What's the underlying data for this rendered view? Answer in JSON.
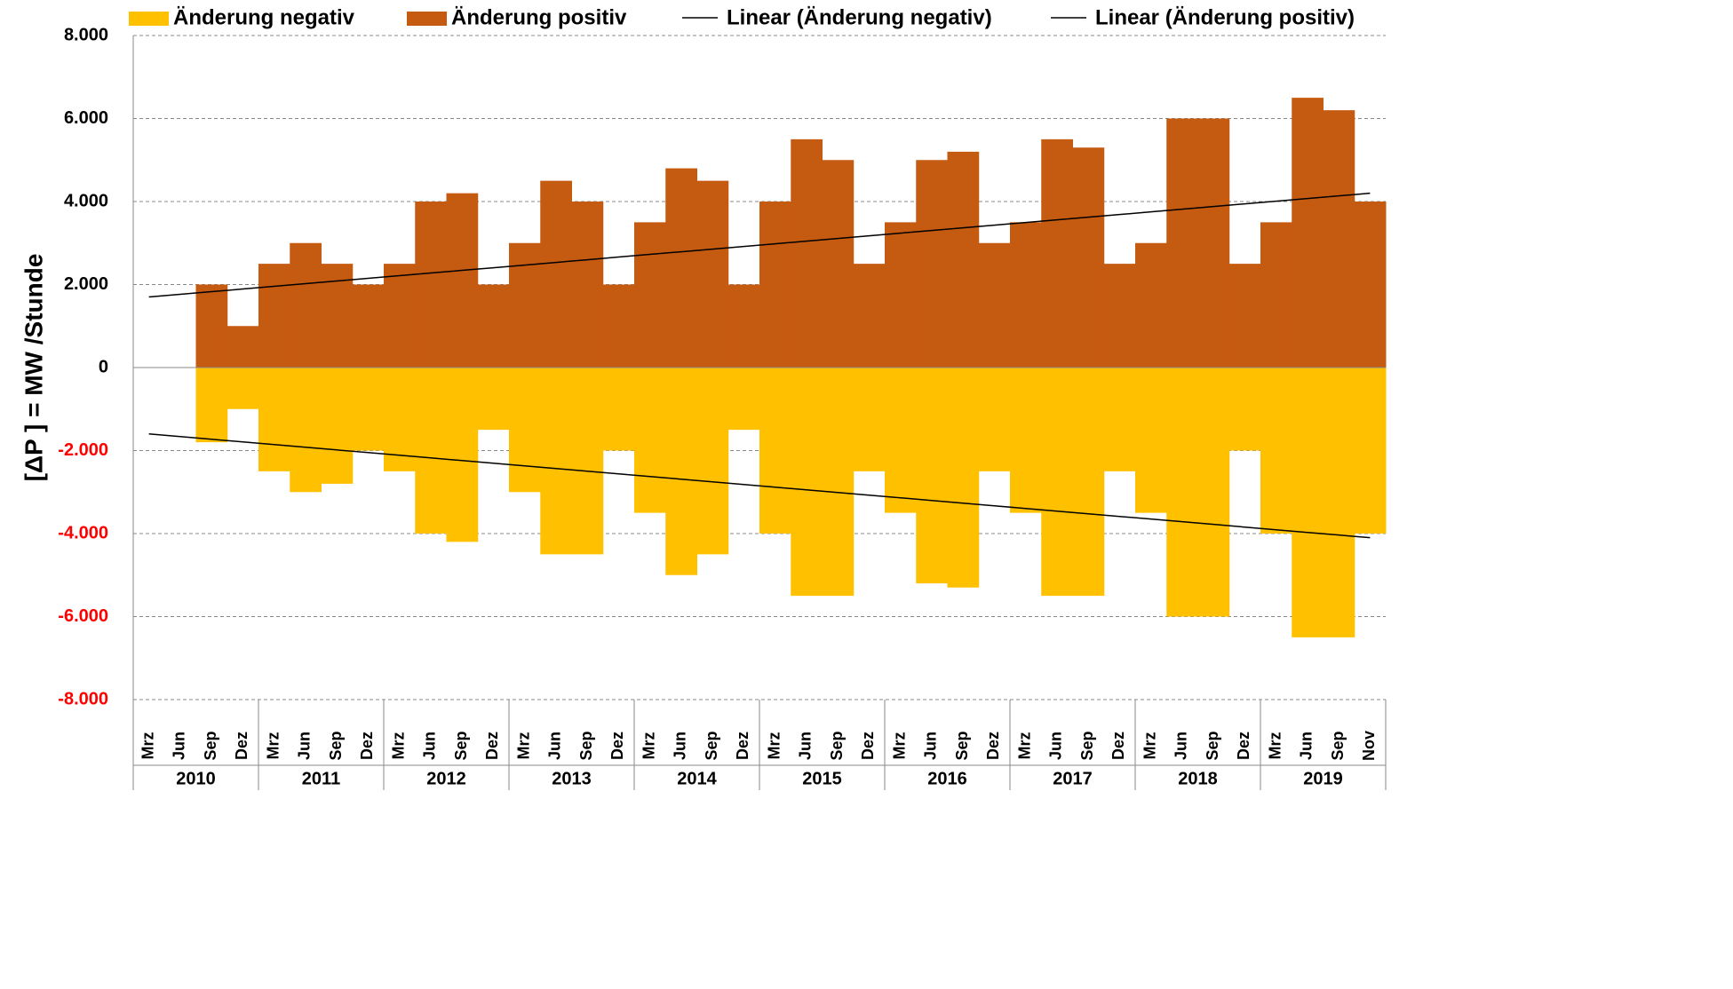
{
  "chart_data": {
    "type": "bar",
    "y_label": "[ΔP ]  =  MW /Stunde",
    "categories": [
      "Mrz",
      "Jun",
      "Sep",
      "Dez",
      "Mrz",
      "Jun",
      "Sep",
      "Dez",
      "Mrz",
      "Jun",
      "Sep",
      "Dez",
      "Mrz",
      "Jun",
      "Sep",
      "Dez",
      "Mrz",
      "Jun",
      "Sep",
      "Dez",
      "Mrz",
      "Jun",
      "Sep",
      "Dez",
      "Mrz",
      "Jun",
      "Sep",
      "Dez",
      "Mrz",
      "Jun",
      "Sep",
      "Dez",
      "Mrz",
      "Jun",
      "Sep",
      "Dez",
      "Mrz",
      "Jun",
      "Sep",
      "Nov"
    ],
    "years": [
      "2010",
      "2011",
      "2012",
      "2013",
      "2014",
      "2015",
      "2016",
      "2017",
      "2018",
      "2019"
    ],
    "series": [
      {
        "name": "Änderung negativ",
        "color": "#ffc000",
        "values": [
          null,
          null,
          -1800,
          -1000,
          -2500,
          -3000,
          -2800,
          -2000,
          -2500,
          -4000,
          -4200,
          -1500,
          -3000,
          -4500,
          -4500,
          -2000,
          -3500,
          -5000,
          -4500,
          -1500,
          -4000,
          -5500,
          -5500,
          -2500,
          -3500,
          -5200,
          -5300,
          -2500,
          -3500,
          -5500,
          -5500,
          -2500,
          -3500,
          -6000,
          -6000,
          -2000,
          -4000,
          -6500,
          -6500,
          -4000
        ]
      },
      {
        "name": "Änderung positiv",
        "color": "#c55a11",
        "values": [
          null,
          null,
          2000,
          1000,
          2500,
          3000,
          2500,
          2000,
          2500,
          4000,
          4200,
          2000,
          3000,
          4500,
          4000,
          2000,
          3500,
          4800,
          4500,
          2000,
          4000,
          5500,
          5000,
          2500,
          3500,
          5000,
          5200,
          3000,
          3500,
          5500,
          5300,
          2500,
          3000,
          6000,
          6000,
          2500,
          3500,
          6500,
          6200,
          4000
        ]
      },
      {
        "name": "Linear (Änderung negativ)",
        "type": "line",
        "color": "#000000",
        "values": [
          -1600,
          -1664,
          -1728,
          -1792,
          -1856,
          -1921,
          -1985,
          -2049,
          -2113,
          -2177,
          -2241,
          -2305,
          -2369,
          -2433,
          -2497,
          -2562,
          -2626,
          -2690,
          -2754,
          -2818,
          -2882,
          -2946,
          -3010,
          -3074,
          -3138,
          -3203,
          -3267,
          -3331,
          -3395,
          -3459,
          -3523,
          -3587,
          -3651,
          -3715,
          -3779,
          -3844,
          -3908,
          -3972,
          -4036,
          -4100
        ]
      },
      {
        "name": "Linear (Änderung positiv)",
        "type": "line",
        "color": "#000000",
        "values": [
          1700,
          1764,
          1828,
          1892,
          1956,
          2021,
          2085,
          2149,
          2213,
          2277,
          2341,
          2405,
          2469,
          2533,
          2597,
          2662,
          2726,
          2790,
          2854,
          2918,
          2982,
          3046,
          3110,
          3174,
          3238,
          3303,
          3367,
          3431,
          3495,
          3559,
          3623,
          3687,
          3751,
          3815,
          3879,
          3944,
          4008,
          4072,
          4136,
          4200
        ]
      }
    ],
    "ylim": [
      -8000,
      8000
    ],
    "yticks": [
      {
        "value": -8000,
        "label": "-8.000"
      },
      {
        "value": -6000,
        "label": "-6.000"
      },
      {
        "value": -4000,
        "label": "-4.000"
      },
      {
        "value": -2000,
        "label": "-2.000"
      },
      0,
      {
        "value": 2000,
        "label": "2.000"
      },
      {
        "value": 4000,
        "label": "4.000"
      },
      {
        "value": 6000,
        "label": "6.000"
      },
      {
        "value": 8000,
        "label": "8.000"
      }
    ],
    "negative_tick_color": "#ff0000",
    "grid": true,
    "legend": "top"
  }
}
